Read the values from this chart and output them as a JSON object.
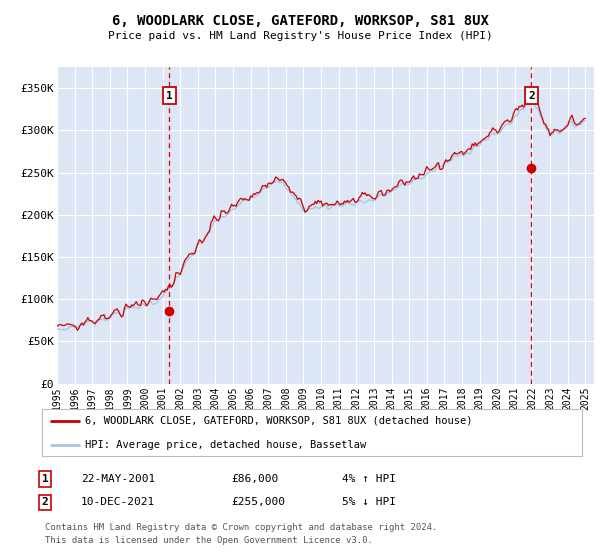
{
  "title": "6, WOODLARK CLOSE, GATEFORD, WORKSOP, S81 8UX",
  "subtitle": "Price paid vs. HM Land Registry's House Price Index (HPI)",
  "ylabel_ticks": [
    "£0",
    "£50K",
    "£100K",
    "£150K",
    "£200K",
    "£250K",
    "£300K",
    "£350K"
  ],
  "ytick_values": [
    0,
    50000,
    100000,
    150000,
    200000,
    250000,
    300000,
    350000
  ],
  "ylim": [
    0,
    375000
  ],
  "xlim_start": 1995.0,
  "xlim_end": 2025.5,
  "bg_color": "#dce6f5",
  "grid_color": "#ffffff",
  "line1_color": "#cc0000",
  "line2_color": "#a8c4e0",
  "sale1_x": 2001.38,
  "sale1_y": 86000,
  "sale1_label": "1",
  "sale1_date": "22-MAY-2001",
  "sale1_price": "£86,000",
  "sale1_hpi": "4% ↑ HPI",
  "sale2_x": 2021.94,
  "sale2_y": 255000,
  "sale2_label": "2",
  "sale2_date": "10-DEC-2021",
  "sale2_price": "£255,000",
  "sale2_hpi": "5% ↓ HPI",
  "legend1_label": "6, WOODLARK CLOSE, GATEFORD, WORKSOP, S81 8UX (detached house)",
  "legend2_label": "HPI: Average price, detached house, Bassetlaw",
  "footer1": "Contains HM Land Registry data © Crown copyright and database right 2024.",
  "footer2": "This data is licensed under the Open Government Licence v3.0.",
  "xtick_years": [
    1995,
    1996,
    1997,
    1998,
    1999,
    2000,
    2001,
    2002,
    2003,
    2004,
    2005,
    2006,
    2007,
    2008,
    2009,
    2010,
    2011,
    2012,
    2013,
    2014,
    2015,
    2016,
    2017,
    2018,
    2019,
    2020,
    2021,
    2022,
    2023,
    2024,
    2025
  ]
}
